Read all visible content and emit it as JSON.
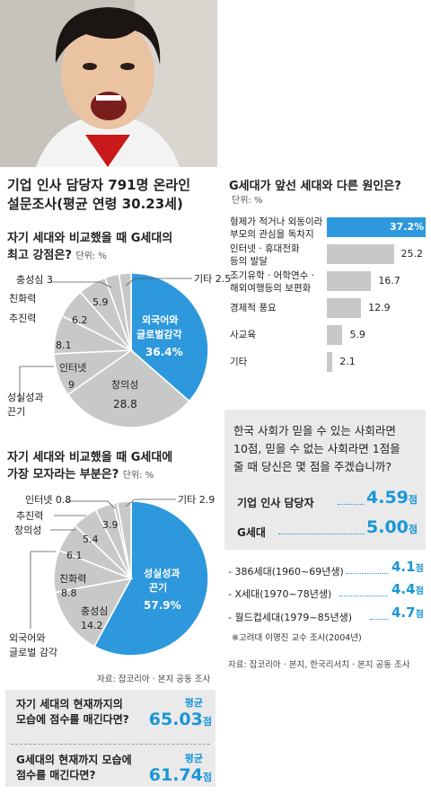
{
  "headline": [
    "기업 인사 담당자 791명 온라인",
    "설문조사(평균 연령 30.23세)"
  ],
  "strengths": {
    "title": [
      "자기 세대와 비교했을 때 G세대의",
      "최고 강점은?"
    ],
    "unit": "단위: %",
    "chart_data": {
      "type": "pie",
      "categories": [
        "외국어와 글로벌감각",
        "창의성",
        "인터넷",
        "성실성과 끈기",
        "추진력",
        "친화력",
        "충성심",
        "기타"
      ],
      "values": [
        36.4,
        28.8,
        9,
        8.1,
        6.2,
        5.9,
        3,
        2.5
      ],
      "highlight": "외국어와 글로벌감각"
    },
    "labels": {
      "foreign_1": "외국어와",
      "foreign_2": "글로벌감각",
      "foreign_v": "36.4%",
      "creative": "창의성",
      "creative_v": "28.8",
      "internet": "인터넷",
      "internet_v": "9",
      "sincere_1": "성실성과",
      "sincere_2": "끈기",
      "sincere_v": "8.1",
      "drive": "추진력",
      "drive_v": "6.2",
      "affinity": "친화력",
      "affinity_v": "5.9",
      "loyalty": "충성심 3",
      "etc": "기타 2.5"
    }
  },
  "weaknesses": {
    "title": [
      "자기 세대와 비교했을 때 G세대에",
      "가장 모자라는 부분은?"
    ],
    "unit": "단위: %",
    "chart_data": {
      "type": "pie",
      "categories": [
        "성실성과 끈기",
        "충성심",
        "친화력",
        "외국어와 글로벌 감각",
        "창의성",
        "추진력",
        "인터넷",
        "기타"
      ],
      "values": [
        57.9,
        14.2,
        8.8,
        6.1,
        5.4,
        3.9,
        0.8,
        2.9
      ],
      "highlight": "성실성과 끈기"
    },
    "labels": {
      "sincere_1": "성실성과",
      "sincere_2": "끈기",
      "sincere_v": "57.9%",
      "loyalty": "충성심",
      "loyalty_v": "14.2",
      "affinity": "친화력",
      "affinity_v": "8.8",
      "foreign_1": "외국어와",
      "foreign_2": "글로벌 감각",
      "foreign_v": "6.1",
      "creative": "창의성",
      "creative_v": "5.4",
      "drive": "추진력",
      "drive_v": "3.9",
      "internet": "인터넷 0.8",
      "etc": "기타 2.9"
    },
    "source": "자료: 잡코리아 · 본지 공동 조사"
  },
  "self_score": {
    "question": [
      "자기 세대의 현재까지의",
      "모습에 점수를 매긴다면?"
    ],
    "avg_label": "평균",
    "score": "65.03",
    "unit": "점"
  },
  "g_score": {
    "question": [
      "G세대의 현재까지 모습에",
      "점수를 매긴다면?"
    ],
    "avg_label": "평균",
    "score": "61.74",
    "unit": "점"
  },
  "causes": {
    "title": "G세대가 앞선 세대와 다른 원인은?",
    "unit": "단위: %",
    "chart_data": {
      "type": "bar",
      "categories": [
        "형제가 적거나 외동이라 부모의 관심을 독차지",
        "인터넷·휴대전화 등의 발달",
        "조기유학·어학연수·해외여행등의 보편화",
        "경제적 풍요",
        "사교육",
        "기타"
      ],
      "values": [
        37.2,
        25.2,
        16.7,
        12.9,
        5.9,
        2.1
      ],
      "xlim": [
        0,
        37.2
      ]
    },
    "items": [
      {
        "l1": "형제가 적거나 외동이라",
        "l2": "부모의 관심을 독차지",
        "v": "37.2%"
      },
      {
        "l1": "인터넷 · 휴대전화",
        "l2": "등의 발달",
        "v": "25.2"
      },
      {
        "l1": "조기유학 · 어학연수 ·",
        "l2": "해외여행등의 보편화",
        "v": "16.7"
      },
      {
        "l1": "경제적 풍요",
        "l2": "",
        "v": "12.9"
      },
      {
        "l1": "사교육",
        "l2": "",
        "v": "5.9"
      },
      {
        "l1": "기타",
        "l2": "",
        "v": "2.1"
      }
    ]
  },
  "trust_score": {
    "question": [
      "한국 사회가 믿을 수 있는 사회라면",
      "10점, 믿을 수 없는 사회라면 1점을",
      "줄 때 당신은 몇 점을 주겠습니까?"
    ],
    "rows": [
      {
        "label": "기업 인사 담당자",
        "value": "4.59",
        "unit": "점"
      },
      {
        "label": "G세대",
        "value": "5.00",
        "unit": "점"
      }
    ],
    "generations": [
      {
        "label": "- 386세대(1960~69년생)",
        "value": "4.1",
        "unit": "점"
      },
      {
        "label": "- X세대(1970~78년생)",
        "value": "4.4",
        "unit": "점"
      },
      {
        "label": "- 월드컵세대(1979~85년생)",
        "value": "4.7",
        "unit": "점"
      }
    ],
    "note": "※고려대 이명진 교수 조사(2004년)"
  },
  "source_right": "자료: 잡코리아 · 본지, 한국리서치 · 본지 공동 조사",
  "colors": {
    "accent": "#2e98dd",
    "gray": "#c8c8c8",
    "panel": "#eaeaea"
  }
}
